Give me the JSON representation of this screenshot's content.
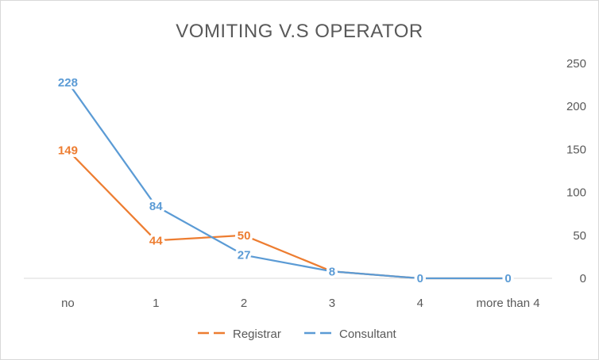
{
  "chart_data": {
    "type": "line",
    "title": "VOMITING V.S OPERATOR",
    "xlabel": "",
    "ylabel": "",
    "categories": [
      "no",
      "1",
      "2",
      "3",
      "4",
      "more than 4"
    ],
    "y_axis_position": "right",
    "ylim": [
      0,
      250
    ],
    "yticks": [
      "0",
      "50",
      "100",
      "150",
      "200",
      "250"
    ],
    "grid": false,
    "legend_position": "bottom",
    "series": [
      {
        "name": "Registrar",
        "color": "#ed7d31",
        "values": [
          149,
          44,
          50,
          8,
          0,
          0
        ],
        "labels": [
          "149",
          "44",
          "50",
          "8",
          "0",
          "0"
        ]
      },
      {
        "name": "Consultant",
        "color": "#5b9bd5",
        "values": [
          228,
          84,
          27,
          8,
          0,
          0
        ],
        "labels": [
          "228",
          "84",
          "27",
          "8",
          "0",
          "0"
        ]
      }
    ]
  }
}
